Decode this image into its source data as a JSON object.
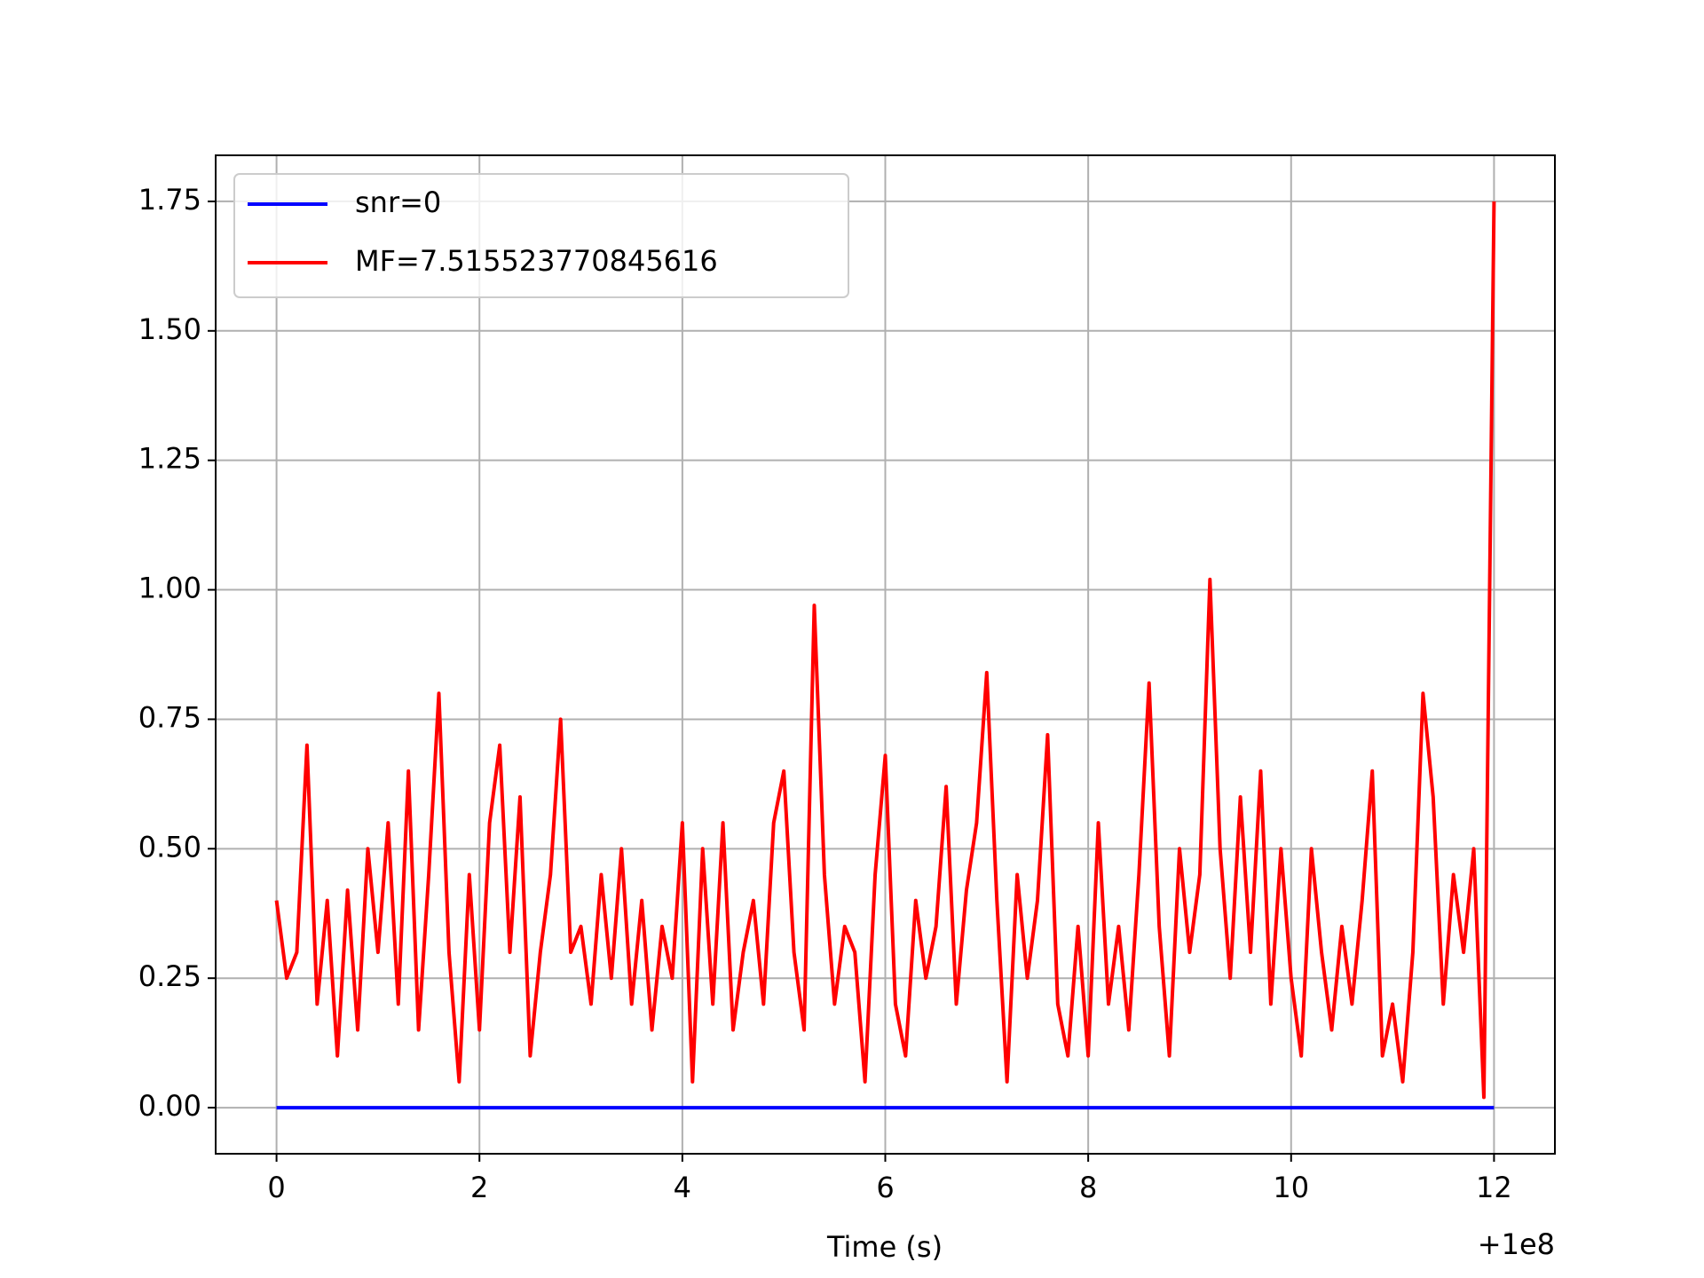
{
  "chart_data": {
    "type": "line",
    "x_label": "Time (s)",
    "x_offset_label": "+1e8",
    "xlim": [
      -0.6,
      12.6
    ],
    "ylim": [
      -0.089,
      1.839
    ],
    "xticks": [
      0,
      2,
      4,
      6,
      8,
      10,
      12
    ],
    "yticks": [
      {
        "value": 0,
        "label": "0.00"
      },
      0.25,
      {
        "value": 0.5,
        "label": "0.50"
      },
      0.75,
      {
        "value": 1,
        "label": "1.00"
      },
      1.25,
      {
        "value": 1.5,
        "label": "1.50"
      },
      1.75
    ],
    "grid": true,
    "legend": "upper left",
    "series": [
      {
        "name": "snr=0",
        "color": "#0000ff",
        "x": [
          0,
          12
        ],
        "values": [
          0,
          0
        ]
      },
      {
        "name": "MF=7.515523770845616",
        "color": "#ff0000",
        "x": [
          0,
          0.1,
          0.2,
          0.3,
          0.4,
          0.5,
          0.6,
          0.7,
          0.8,
          0.9,
          1,
          1.1,
          1.2,
          1.3,
          1.4,
          1.5,
          1.6,
          1.7,
          1.8,
          1.9,
          2,
          2.1,
          2.2,
          2.3,
          2.4,
          2.5,
          2.6,
          2.7,
          2.8,
          2.9,
          3,
          3.1,
          3.2,
          3.3,
          3.4,
          3.5,
          3.6,
          3.7,
          3.8,
          3.9,
          4,
          4.1,
          4.2,
          4.3,
          4.4,
          4.5,
          4.6,
          4.7,
          4.8,
          4.9,
          5,
          5.1,
          5.2,
          5.3,
          5.4,
          5.5,
          5.6,
          5.7,
          5.8,
          5.9,
          6,
          6.1,
          6.2,
          6.3,
          6.4,
          6.5,
          6.6,
          6.7,
          6.8,
          6.9,
          7,
          7.1,
          7.2,
          7.3,
          7.4,
          7.5,
          7.6,
          7.7,
          7.8,
          7.9,
          8,
          8.1,
          8.2,
          8.3,
          8.4,
          8.5,
          8.6,
          8.7,
          8.8,
          8.9,
          9,
          9.1,
          9.2,
          9.3,
          9.4,
          9.5,
          9.6,
          9.7,
          9.8,
          9.9,
          10,
          10.1,
          10.2,
          10.3,
          10.4,
          10.5,
          10.6,
          10.7,
          10.8,
          10.9,
          11,
          11.1,
          11.2,
          11.3,
          11.4,
          11.5,
          11.6,
          11.7,
          11.8,
          11.9,
          12
        ],
        "values": [
          0.4,
          0.25,
          0.3,
          0.7,
          0.2,
          0.4,
          0.1,
          0.42,
          0.15,
          0.5,
          0.3,
          0.55,
          0.2,
          0.65,
          0.15,
          0.45,
          0.8,
          0.3,
          0.05,
          0.45,
          0.15,
          0.55,
          0.7,
          0.3,
          0.6,
          0.1,
          0.3,
          0.45,
          0.75,
          0.3,
          0.35,
          0.2,
          0.45,
          0.25,
          0.5,
          0.2,
          0.4,
          0.15,
          0.35,
          0.25,
          0.55,
          0.05,
          0.5,
          0.2,
          0.55,
          0.15,
          0.3,
          0.4,
          0.2,
          0.55,
          0.65,
          0.3,
          0.15,
          0.97,
          0.45,
          0.2,
          0.35,
          0.3,
          0.05,
          0.45,
          0.68,
          0.2,
          0.1,
          0.4,
          0.25,
          0.35,
          0.62,
          0.2,
          0.42,
          0.55,
          0.84,
          0.4,
          0.05,
          0.45,
          0.25,
          0.4,
          0.72,
          0.2,
          0.1,
          0.35,
          0.1,
          0.55,
          0.2,
          0.35,
          0.15,
          0.45,
          0.82,
          0.35,
          0.1,
          0.5,
          0.3,
          0.45,
          1.02,
          0.5,
          0.25,
          0.6,
          0.3,
          0.65,
          0.2,
          0.5,
          0.25,
          0.1,
          0.5,
          0.3,
          0.15,
          0.35,
          0.2,
          0.4,
          0.65,
          0.1,
          0.2,
          0.05,
          0.3,
          0.8,
          0.6,
          0.2,
          0.45,
          0.3,
          0.5,
          0.02,
          1.75
        ]
      }
    ]
  }
}
